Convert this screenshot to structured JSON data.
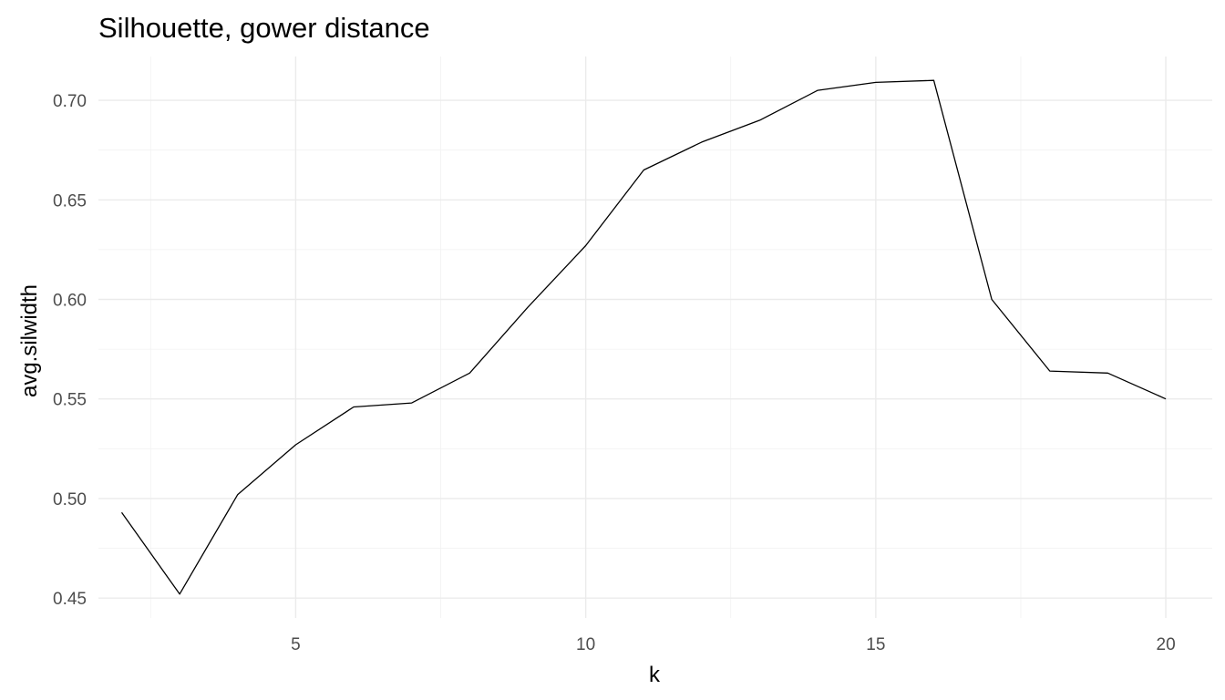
{
  "chart_data": {
    "type": "line",
    "title": "Silhouette, gower distance",
    "xlabel": "k",
    "ylabel": "avg.silwidth",
    "xlim": [
      1.6,
      20.8
    ],
    "ylim": [
      0.44,
      0.722
    ],
    "x_ticks": [
      5,
      10,
      15,
      20
    ],
    "x_tick_labels": [
      "5",
      "10",
      "15",
      "20"
    ],
    "x_minor_ticks": [
      2.5,
      7.5,
      12.5,
      17.5
    ],
    "y_ticks": [
      0.45,
      0.5,
      0.55,
      0.6,
      0.65,
      0.7
    ],
    "y_tick_labels": [
      "0.45",
      "0.50",
      "0.55",
      "0.60",
      "0.65",
      "0.70"
    ],
    "y_minor_ticks": [
      0.475,
      0.525,
      0.575,
      0.625,
      0.675
    ],
    "grid": true,
    "line_color": "#000000",
    "series": [
      {
        "x": [
          2,
          3,
          4,
          5,
          6,
          7,
          8,
          9,
          10,
          11,
          12,
          13,
          14,
          15,
          16,
          17,
          18,
          19,
          20
        ],
        "values": [
          0.493,
          0.452,
          0.502,
          0.527,
          0.546,
          0.548,
          0.563,
          0.596,
          0.627,
          0.665,
          0.679,
          0.69,
          0.705,
          0.709,
          0.71,
          0.6,
          0.564,
          0.563,
          0.55
        ]
      }
    ]
  }
}
